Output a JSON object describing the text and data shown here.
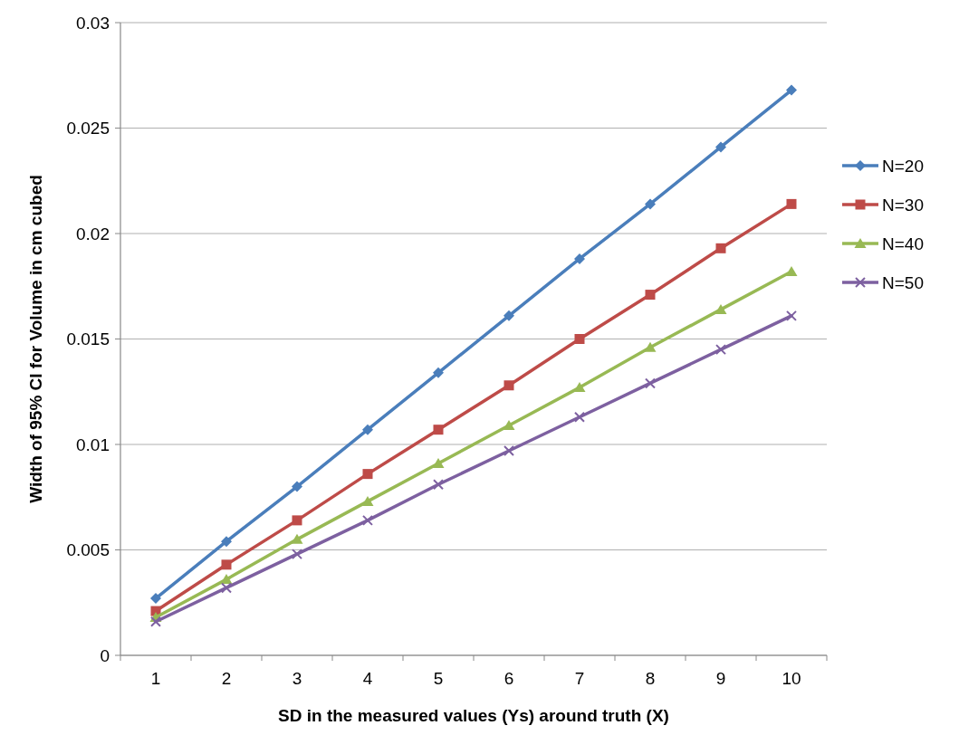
{
  "chart_data": {
    "type": "line",
    "xlabel": "SD in the measured values (Ys) around truth (X)",
    "ylabel": "Width of 95% CI for Volume in cm cubed",
    "categories": [
      "1",
      "2",
      "3",
      "4",
      "5",
      "6",
      "7",
      "8",
      "9",
      "10"
    ],
    "series": [
      {
        "name": "N=20",
        "color": "#4a7ebb",
        "marker": "diamond",
        "values": [
          0.0027,
          0.0054,
          0.008,
          0.0107,
          0.0134,
          0.0161,
          0.0188,
          0.0214,
          0.0241,
          0.0268
        ]
      },
      {
        "name": "N=30",
        "color": "#be4b48",
        "marker": "square",
        "values": [
          0.0021,
          0.0043,
          0.0064,
          0.0086,
          0.0107,
          0.0128,
          0.015,
          0.0171,
          0.0193,
          0.0214
        ]
      },
      {
        "name": "N=40",
        "color": "#98b954",
        "marker": "triangle",
        "values": [
          0.0018,
          0.0036,
          0.0055,
          0.0073,
          0.0091,
          0.0109,
          0.0127,
          0.0146,
          0.0164,
          0.0182
        ]
      },
      {
        "name": "N=50",
        "color": "#7d60a0",
        "marker": "cross",
        "values": [
          0.0016,
          0.0032,
          0.0048,
          0.0064,
          0.0081,
          0.0097,
          0.0113,
          0.0129,
          0.0145,
          0.0161
        ]
      }
    ],
    "ylim": [
      0,
      0.03
    ],
    "yticks": [
      0,
      0.005,
      0.01,
      0.015,
      0.02,
      0.025,
      0.03
    ],
    "grid": "y",
    "legend": "right",
    "line_style": "solid"
  }
}
